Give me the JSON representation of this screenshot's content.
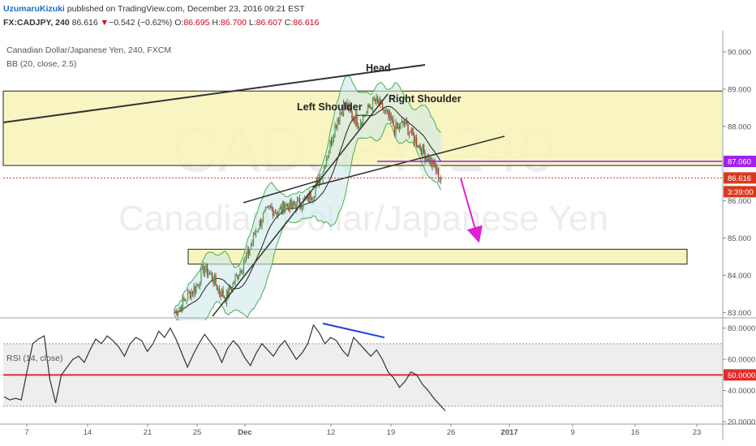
{
  "header": {
    "author": "UzumaruKizuki",
    "published": "published on TradingView.com, December 23, 2016 09:21 EST",
    "symbol": "FX:CADJPY, 240",
    "last": "86.616",
    "change_arrow": "▼",
    "change": "−0.542 (−0.62%)",
    "o_label": "O:",
    "o": "86.695",
    "h_label": "H:",
    "h": "86.700",
    "l_label": "L:",
    "l": "86.607",
    "c_label": "C:",
    "c": "86.616"
  },
  "legend": {
    "series_title": "Canadian Dollar/Japanese Yen, 240, FXCM",
    "bb": "BB (20, close, 2.5)",
    "rsi": "RSI (14, close)"
  },
  "watermark": {
    "ticker": "CADJPY, 240",
    "name": "Canadian Dollar/Japanese Yen"
  },
  "colors": {
    "candle_up": "#4caf50",
    "candle_down": "#b33c1d",
    "zone_fill": "#f7f3b8",
    "bb_fill": "#cfe8e8",
    "bb_line": "#4caf50",
    "trendline": "#333333",
    "projection": "#e020d0",
    "rsi_line": "#333333",
    "rsi_mid": "#e52b2b",
    "rsi_divergence": "#1f3fd6",
    "price_level": "#a020f0",
    "last_price_bg": "#d83a1f"
  },
  "chart_data": [
    {
      "type": "candlestick",
      "title": "Canadian Dollar/Japanese Yen, 240, FXCM",
      "x_tick_labels": [
        "7",
        "14",
        "21",
        "25",
        "Dec",
        "12",
        "19",
        "26",
        "2017",
        "9",
        "16",
        "23"
      ],
      "y_tick_labels": [
        "83.000",
        "84.000",
        "85.000",
        "86.000",
        "87.000",
        "88.000",
        "89.000",
        "90.000"
      ],
      "ylim": [
        82.9,
        90.35
      ],
      "price_line_marks": [
        {
          "label": "87.060",
          "value": 87.06
        },
        {
          "label": "86.616",
          "value": 86.616
        },
        {
          "label": "3:39:00"
        }
      ],
      "annotations": [
        {
          "text": "Head"
        },
        {
          "text": "Left Shoulder"
        },
        {
          "text": "Right Shoulder"
        }
      ],
      "zones": [
        {
          "from": 86.95,
          "to": 88.95
        },
        {
          "from": 84.3,
          "to": 84.7
        }
      ],
      "close_path": [
        [
          0,
          83.0
        ],
        [
          2,
          83.2
        ],
        [
          4,
          83.5
        ],
        [
          6,
          83.7
        ],
        [
          8,
          84.2
        ],
        [
          10,
          84.0
        ],
        [
          12,
          83.6
        ],
        [
          14,
          83.4
        ],
        [
          16,
          83.8
        ],
        [
          18,
          84.2
        ],
        [
          20,
          84.6
        ],
        [
          22,
          85.2
        ],
        [
          24,
          85.6
        ],
        [
          26,
          85.8
        ],
        [
          28,
          85.7
        ],
        [
          30,
          85.9
        ],
        [
          32,
          85.85
        ],
        [
          34,
          85.95
        ],
        [
          36,
          86.05
        ],
        [
          38,
          86.3
        ],
        [
          40,
          86.8
        ],
        [
          42,
          87.5
        ],
        [
          44,
          88.2
        ],
        [
          46,
          88.6
        ],
        [
          48,
          88.3
        ],
        [
          50,
          88.1
        ],
        [
          52,
          88.4
        ],
        [
          54,
          88.7
        ],
        [
          56,
          88.5
        ],
        [
          58,
          88.2
        ],
        [
          60,
          87.9
        ],
        [
          62,
          88.1
        ],
        [
          64,
          87.8
        ],
        [
          66,
          87.5
        ],
        [
          68,
          87.2
        ],
        [
          70,
          86.95
        ],
        [
          72,
          86.6
        ]
      ]
    },
    {
      "type": "line",
      "title": "RSI (14, close)",
      "y_tick_labels": [
        "20.0000",
        "40.0000",
        "60.0000",
        "80.0000"
      ],
      "ylim": [
        19,
        85
      ],
      "levels": [
        70,
        50,
        30
      ],
      "level_marks": [
        {
          "label": "50.0000",
          "value": 50
        }
      ],
      "values": [
        36,
        34,
        35,
        34,
        52,
        70,
        73,
        75,
        47,
        32,
        50,
        55,
        60,
        62,
        58,
        66,
        73,
        70,
        75,
        72,
        68,
        62,
        70,
        74,
        72,
        65,
        70,
        78,
        74,
        80,
        73,
        64,
        55,
        63,
        70,
        76,
        71,
        66,
        58,
        67,
        72,
        68,
        61,
        56,
        64,
        70,
        66,
        62,
        68,
        72,
        66,
        60,
        64,
        70,
        82,
        77,
        70,
        74,
        72,
        66,
        62,
        74,
        70,
        66,
        62,
        66,
        60,
        52,
        48,
        42,
        46,
        52,
        50,
        44,
        40,
        35,
        31,
        27
      ]
    }
  ]
}
